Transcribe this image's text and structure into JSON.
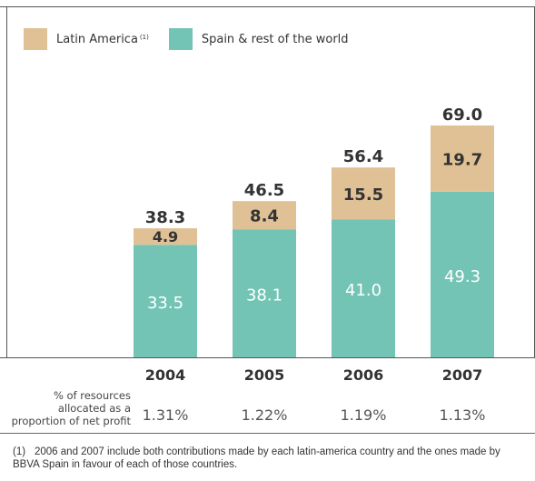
{
  "legend": {
    "latam_label": "Latin America",
    "latam_note": "(1)",
    "spain_label": "Spain & rest of the world"
  },
  "colors": {
    "latin_america": "#e0c195",
    "spain_rest_of_world": "#73c4b5"
  },
  "row_label": [
    "% of resources",
    "allocated as a",
    "proportion of net profit"
  ],
  "percentages": [
    "1.31%",
    "1.22%",
    "1.19%",
    "1.13%"
  ],
  "footnote": {
    "marker": "(1)",
    "text": "2006 and 2007 include both contributions made by each latin-america country and the ones made by BBVA Spain in favour of each of those countries."
  },
  "chart_data": {
    "type": "bar",
    "stacked": true,
    "categories": [
      "2004",
      "2005",
      "2006",
      "2007"
    ],
    "series": [
      {
        "name": "Spain & rest of the world",
        "values": [
          33.5,
          38.1,
          41.0,
          49.3
        ],
        "labels": [
          "33.5",
          "38.1",
          "41.0",
          "49.3"
        ]
      },
      {
        "name": "Latin America",
        "values": [
          4.9,
          8.4,
          15.5,
          19.7
        ],
        "labels": [
          "4.9",
          "8.4",
          "15.5",
          "19.7"
        ]
      }
    ],
    "totals": [
      "38.3",
      "46.5",
      "56.4",
      "69.0"
    ],
    "ylim": [
      0,
      69.0
    ],
    "grid": false,
    "legend_position": "top-left"
  }
}
